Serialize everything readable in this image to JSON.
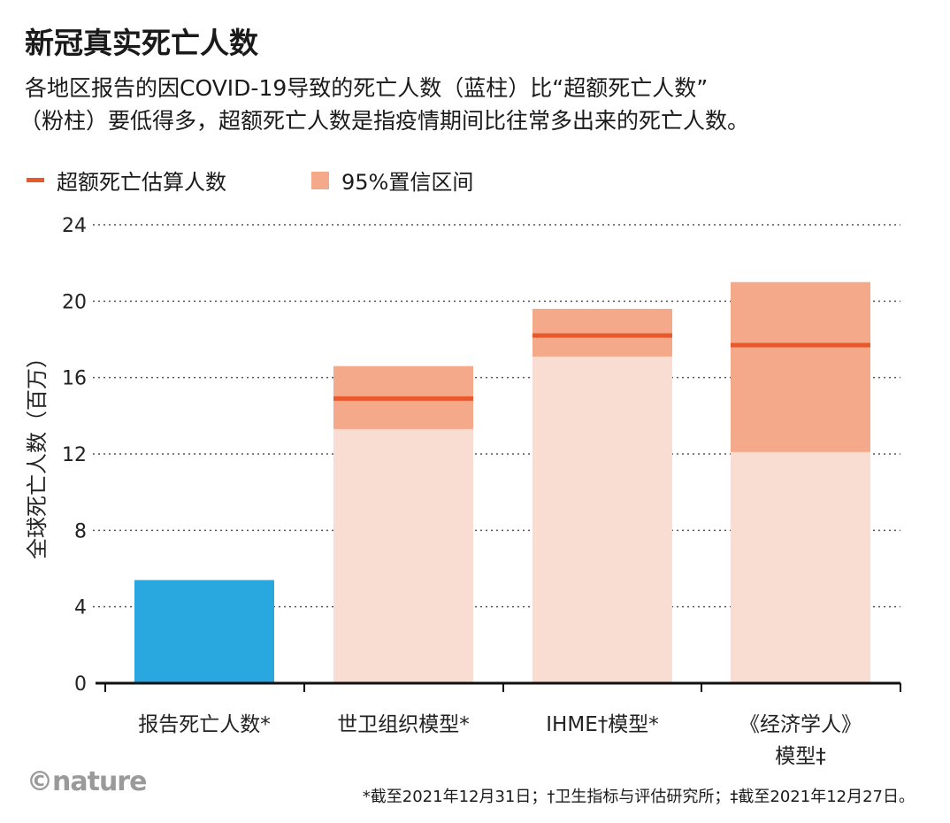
{
  "title": "新冠真实死亡人数",
  "subtitle_lines": [
    "各地区报告的因COVID-19导致的死亡人数（蓝柱）比“超额死亡人数”",
    "（粉柱）要低得多，超额死亡人数是指疫情期间比往常多出来的死亡人数。"
  ],
  "legend": {
    "estimate_label": "超额死亡估算人数",
    "ci_label": "95%置信区间"
  },
  "colors": {
    "reported": "#29a8e0",
    "bar_base": "#f9ddd2",
    "ci": "#f4a98a",
    "estimate": "#e8582a"
  },
  "chart_data": {
    "type": "bar",
    "ylabel": "全球死亡人数（百万）",
    "ylim": [
      0,
      24
    ],
    "yticks": [
      "0",
      "4",
      "8",
      "12",
      "16",
      "20",
      "24"
    ],
    "grid": true,
    "legend_position": "top-left",
    "categories": [
      "报告死亡人数*",
      "世卫组织模型*",
      "IHME†模型*",
      "《经济学人》模型‡"
    ],
    "category_lines": [
      [
        "报告死亡人数*"
      ],
      [
        "世卫组织模型*"
      ],
      [
        "IHME†模型*"
      ],
      [
        "《经济学人》",
        "模型‡"
      ]
    ],
    "reported": [
      5.4,
      null,
      null,
      null
    ],
    "estimate": [
      null,
      14.9,
      18.2,
      17.7
    ],
    "ci_low": [
      null,
      13.3,
      17.1,
      12.1
    ],
    "ci_high": [
      null,
      16.6,
      19.6,
      21.0
    ]
  },
  "footnote": "*截至2021年12月31日；†卫生指标与评估研究所；‡截至2021年12月27日。",
  "logo": "©nature"
}
